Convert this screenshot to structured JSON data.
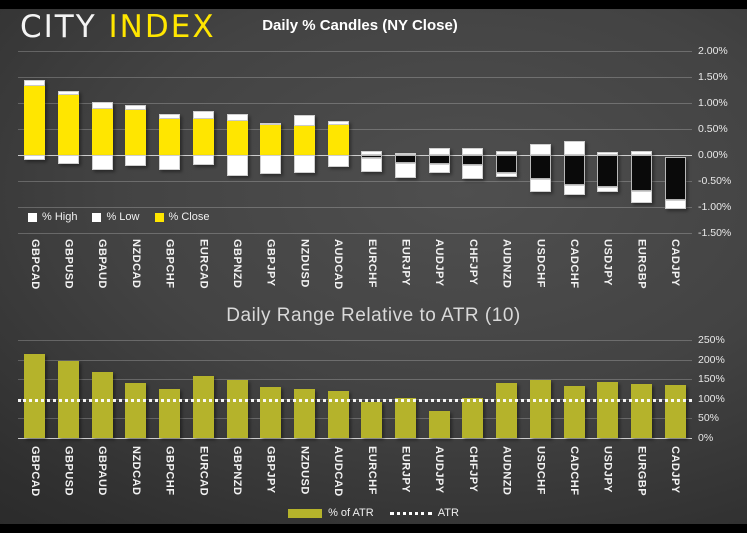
{
  "brand": {
    "part1": "CITY",
    "part2": "INDEX",
    "accent_color": "#ffe600"
  },
  "chart_data": [
    {
      "type": "bar",
      "subtype": "candle-stacked-bars",
      "title": "Daily % Candles (NY Close)",
      "categories": [
        "GBPCAD",
        "GBPUSD",
        "GBPAUD",
        "NZDCAD",
        "GBPCHF",
        "EURCAD",
        "GBPNZD",
        "GBPJPY",
        "NZDUSD",
        "AUDCAD",
        "EURCHF",
        "EURJPY",
        "AUDJPY",
        "CHFJPY",
        "AUDNZD",
        "USDCHF",
        "CADCHF",
        "USDJPY",
        "EURGBP",
        "CADJPY"
      ],
      "series": [
        {
          "name": "% High",
          "color": "#ffffff",
          "values": [
            1.45,
            1.23,
            1.02,
            0.96,
            0.79,
            0.85,
            0.78,
            0.62,
            0.77,
            0.65,
            0.08,
            0.04,
            0.14,
            0.13,
            0.08,
            0.22,
            0.26,
            0.05,
            0.08,
            -0.04
          ]
        },
        {
          "name": "% Low",
          "color": "#ffffff",
          "values": [
            -0.1,
            -0.17,
            -0.29,
            -0.22,
            -0.29,
            -0.19,
            -0.4,
            -0.37,
            -0.35,
            -0.23,
            -0.32,
            -0.45,
            -0.35,
            -0.46,
            -0.42,
            -0.72,
            -0.77,
            -0.72,
            -0.92,
            -1.03
          ]
        },
        {
          "name": "% Close",
          "color": "#ffe600",
          "negative_color": "#0a0a0a",
          "values": [
            1.33,
            1.15,
            0.88,
            0.87,
            0.7,
            0.69,
            0.65,
            0.57,
            0.55,
            0.57,
            -0.05,
            -0.16,
            -0.18,
            -0.19,
            -0.35,
            -0.47,
            -0.58,
            -0.62,
            -0.7,
            -0.87
          ]
        }
      ],
      "ylim": [
        -1.5,
        2.0
      ],
      "ytick_step": 0.5,
      "ytick_labels": [
        "2.00%",
        "1.50%",
        "1.00%",
        "0.50%",
        "0.00%",
        "-0.50%",
        "-1.00%",
        "-1.50%"
      ],
      "grid": true,
      "legend_position": "inside-bottom-left"
    },
    {
      "type": "bar",
      "title": "Daily Range Relative to ATR (10)",
      "categories": [
        "GBPCAD",
        "GBPUSD",
        "GBPAUD",
        "NZDCAD",
        "GBPCHF",
        "EURCAD",
        "GBPNZD",
        "GBPJPY",
        "NZDUSD",
        "AUDCAD",
        "EURCHF",
        "EURJPY",
        "AUDJPY",
        "CHFJPY",
        "AUDNZD",
        "USDCHF",
        "CADCHF",
        "USDJPY",
        "EURGBP",
        "CADJPY"
      ],
      "series": [
        {
          "name": "% of ATR",
          "color": "#b5b32b",
          "values": [
            215,
            197,
            168,
            140,
            126,
            159,
            149,
            129,
            126,
            119,
            93,
            101,
            70,
            102,
            140,
            147,
            132,
            143,
            138,
            135
          ]
        }
      ],
      "reference_line": {
        "name": "ATR",
        "value": 100,
        "style": "dotted",
        "color": "#ffffff"
      },
      "ylim": [
        0,
        250
      ],
      "ytick_step": 50,
      "ytick_labels": [
        "250%",
        "200%",
        "150%",
        "100%",
        "50%",
        "0%"
      ],
      "grid": true,
      "legend_position": "below-center"
    }
  ]
}
